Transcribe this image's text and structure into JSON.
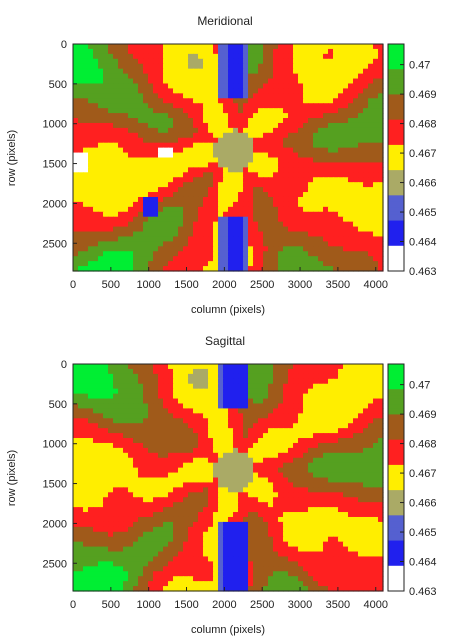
{
  "chart_data": [
    {
      "type": "heatmap",
      "title": "Meridional",
      "xlabel": "column (pixels)",
      "ylabel": "row (pixels)",
      "xlim": [
        0,
        4096
      ],
      "ylim": [
        2848,
        0
      ],
      "x_ticks": [
        "0",
        "500",
        "1000",
        "1500",
        "2000",
        "2500",
        "3000",
        "3500",
        "4000"
      ],
      "y_ticks": [
        "0",
        "500",
        "1000",
        "1500",
        "2000",
        "2500"
      ],
      "colorbar": {
        "min": 0.463,
        "max": 0.4707,
        "ticks": [
          "0.47",
          "0.469",
          "0.468",
          "0.467",
          "0.466",
          "0.465",
          "0.464",
          "0.463"
        ]
      },
      "pattern": "meridional"
    },
    {
      "type": "heatmap",
      "title": "Sagittal",
      "xlabel": "column (pixels)",
      "ylabel": "row (pixels)",
      "xlim": [
        0,
        4096
      ],
      "ylim": [
        2848,
        0
      ],
      "x_ticks": [
        "0",
        "500",
        "1000",
        "1500",
        "2000",
        "2500",
        "3000",
        "3500",
        "4000"
      ],
      "y_ticks": [
        "0",
        "500",
        "1000",
        "1500",
        "2000",
        "2500"
      ],
      "colorbar": {
        "min": 0.463,
        "max": 0.4707,
        "ticks": [
          "0.47",
          "0.469",
          "0.468",
          "0.467",
          "0.466",
          "0.465",
          "0.464",
          "0.463"
        ]
      },
      "pattern": "sagittal"
    }
  ],
  "palette": [
    "#ffffff",
    "#2020ee",
    "#5560d0",
    "#aaaa66",
    "#ffee00",
    "#ff2020",
    "#a05a1a",
    "#55a020",
    "#00ee33"
  ]
}
